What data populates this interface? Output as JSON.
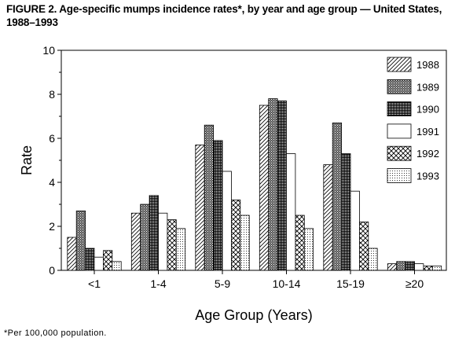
{
  "figure": {
    "title": "FIGURE 2. Age-specific mumps incidence rates*, by year and age group — United States, 1988–1993",
    "footnote": "*Per 100,000 population."
  },
  "chart_data": {
    "type": "bar",
    "title": "FIGURE 2. Age-specific mumps incidence rates*, by year and age group — United States, 1988–1993",
    "xlabel": "Age Group (Years)",
    "ylabel": "Rate",
    "ylim": [
      0,
      10
    ],
    "yticks": [
      0,
      2,
      4,
      6,
      8,
      10
    ],
    "categories": [
      "<1",
      "1-4",
      "5-9",
      "10-14",
      "15-19",
      "≥20"
    ],
    "legend_position": "top-right",
    "grid": false,
    "series": [
      {
        "name": "1988",
        "pattern": "diagonal",
        "values": [
          1.5,
          2.6,
          5.7,
          7.5,
          4.8,
          0.3
        ]
      },
      {
        "name": "1989",
        "pattern": "dense-crosshatch",
        "values": [
          2.7,
          3.0,
          6.6,
          7.8,
          6.7,
          0.4
        ]
      },
      {
        "name": "1990",
        "pattern": "grid",
        "values": [
          1.0,
          3.4,
          5.9,
          7.7,
          5.3,
          0.4
        ]
      },
      {
        "name": "1991",
        "pattern": "blank",
        "values": [
          0.6,
          2.6,
          4.5,
          5.3,
          3.6,
          0.3
        ]
      },
      {
        "name": "1992",
        "pattern": "diamond-crosshatch",
        "values": [
          0.9,
          2.3,
          3.2,
          2.5,
          2.2,
          0.2
        ]
      },
      {
        "name": "1993",
        "pattern": "dots",
        "values": [
          0.4,
          1.9,
          2.5,
          1.9,
          1.0,
          0.2
        ]
      }
    ]
  }
}
